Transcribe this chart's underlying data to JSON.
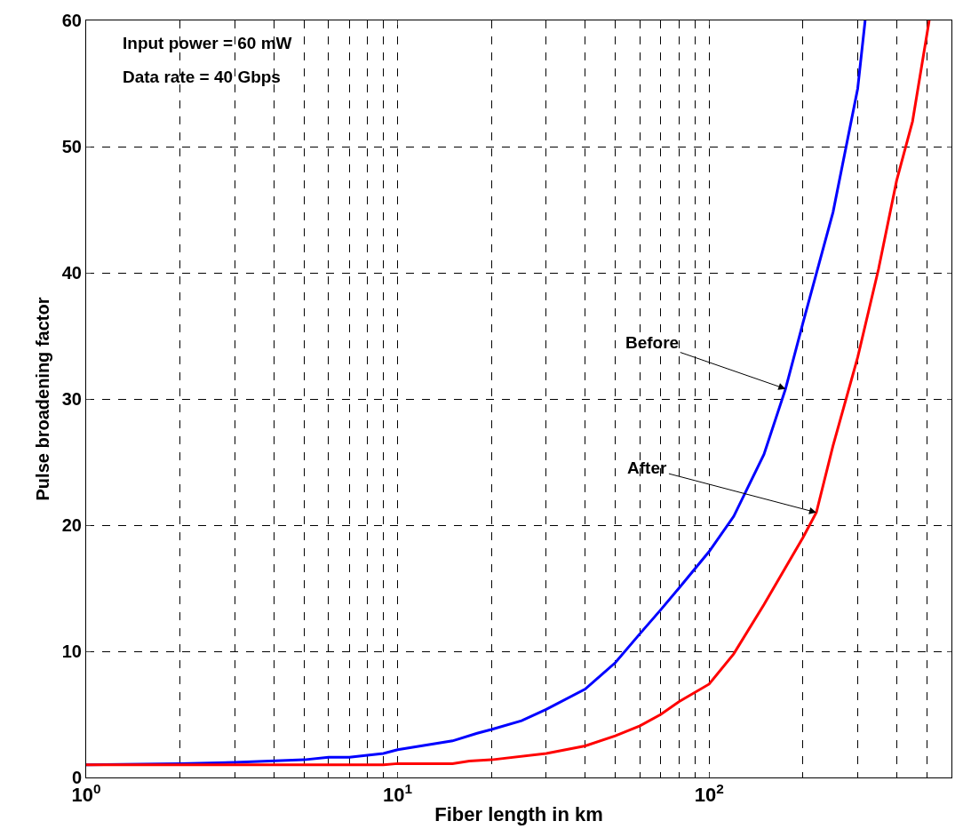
{
  "chart_data": {
    "type": "line",
    "xlabel": "Fiber length in km",
    "ylabel": "Pulse broadening factor",
    "log": "x",
    "grid": true,
    "xlim": [
      1,
      600
    ],
    "ylim": [
      0,
      60
    ],
    "xticks": [
      {
        "value": 1,
        "label": "10$^{0}$"
      },
      {
        "value": 10,
        "label": "10$^{1}$"
      },
      {
        "value": 100,
        "label": "10$^{2}$"
      }
    ],
    "yticks": [
      0,
      10,
      20,
      30,
      40,
      50,
      60
    ],
    "series": [
      {
        "color": "#0000ff",
        "x": [
          1,
          2,
          3,
          5,
          6,
          7,
          9,
          10,
          15,
          18,
          20,
          25,
          30,
          40,
          50,
          60,
          70,
          80,
          100,
          120,
          150,
          176,
          200,
          250,
          300,
          317
        ],
        "values": [
          1.0,
          1.1,
          1.2,
          1.4,
          1.6,
          1.6,
          1.9,
          2.2,
          2.9,
          3.5,
          3.8,
          4.5,
          5.4,
          7.0,
          9.1,
          11.4,
          13.3,
          15.0,
          17.9,
          20.7,
          25.6,
          30.8,
          36.0,
          44.8,
          54.6,
          60
        ]
      },
      {
        "color": "#ff0000",
        "x": [
          1,
          9,
          10,
          15,
          17,
          20,
          30,
          40,
          50,
          60,
          70,
          80,
          100,
          120,
          150,
          200,
          221,
          250,
          300,
          350,
          400,
          450,
          509
        ],
        "values": [
          1.0,
          1.0,
          1.1,
          1.1,
          1.3,
          1.4,
          1.9,
          2.5,
          3.3,
          4.1,
          5.0,
          6.0,
          7.4,
          9.8,
          13.7,
          19.0,
          21.0,
          26.3,
          33.3,
          40.3,
          47.3,
          52.0,
          60
        ]
      }
    ],
    "annotations": [
      "Input power = 60 mW",
      "Data rate = 40 Gbps",
      {
        "text": "Before",
        "x": 176,
        "y": 30.8
      },
      {
        "text": "After",
        "x": 221,
        "y": 21.0
      }
    ]
  }
}
